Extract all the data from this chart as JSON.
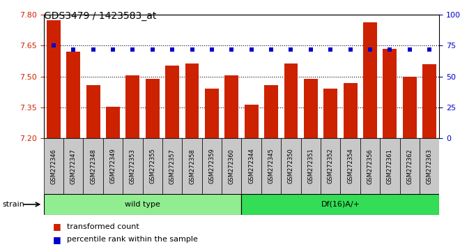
{
  "title": "GDS3479 / 1423583_at",
  "categories": [
    "GSM272346",
    "GSM272347",
    "GSM272348",
    "GSM272349",
    "GSM272353",
    "GSM272355",
    "GSM272357",
    "GSM272358",
    "GSM272359",
    "GSM272360",
    "GSM272344",
    "GSM272345",
    "GSM272350",
    "GSM272351",
    "GSM272352",
    "GSM272354",
    "GSM272356",
    "GSM272361",
    "GSM272362",
    "GSM272363"
  ],
  "bar_values": [
    7.775,
    7.62,
    7.46,
    7.355,
    7.505,
    7.49,
    7.555,
    7.565,
    7.44,
    7.505,
    7.365,
    7.46,
    7.565,
    7.49,
    7.44,
    7.47,
    7.765,
    7.635,
    7.5,
    7.56
  ],
  "percentile_values": [
    75,
    72,
    72,
    72,
    72,
    72,
    72,
    72,
    72,
    72,
    72,
    72,
    72,
    72,
    72,
    72,
    72,
    72,
    72,
    72
  ],
  "bar_color": "#cc2200",
  "percentile_color": "#0000cc",
  "ylim_left": [
    7.2,
    7.8
  ],
  "ylim_right": [
    0,
    100
  ],
  "yticks_left": [
    7.2,
    7.35,
    7.5,
    7.65,
    7.8
  ],
  "yticks_right": [
    0,
    25,
    50,
    75,
    100
  ],
  "groups": [
    {
      "label": "wild type",
      "start": 0,
      "end": 10,
      "color": "#90ee90"
    },
    {
      "label": "Df(16)A/+",
      "start": 10,
      "end": 20,
      "color": "#33dd55"
    }
  ],
  "strain_label": "strain",
  "legend_bar_label": "transformed count",
  "legend_pct_label": "percentile rank within the sample",
  "background_color": "#ffffff",
  "plot_bg_color": "#ffffff",
  "grid_color": "#000000",
  "tick_label_color_left": "#cc2200",
  "tick_label_color_right": "#0000cc",
  "tick_cell_color": "#c8c8c8"
}
